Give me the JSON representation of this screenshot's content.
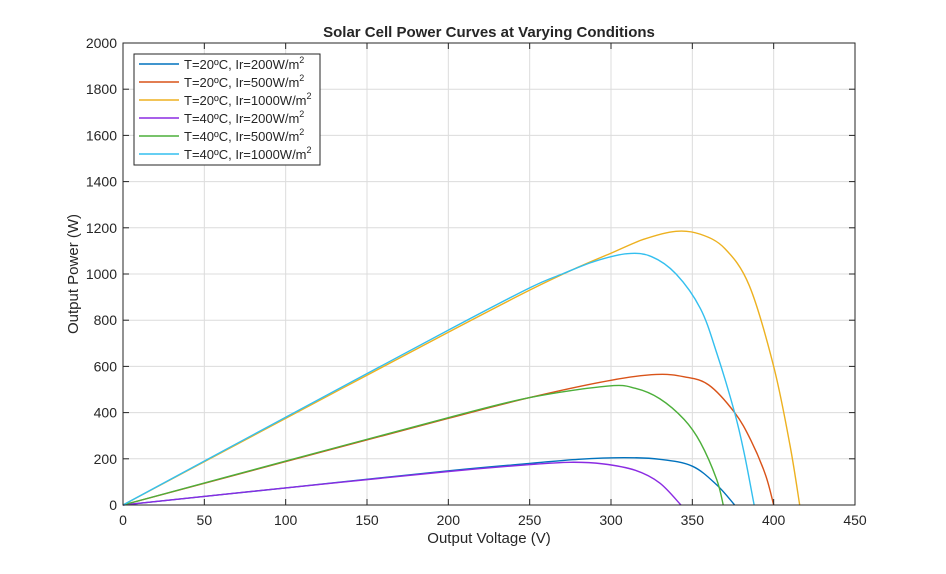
{
  "chart_data": {
    "type": "line",
    "title": "Solar Cell Power Curves at Varying Conditions",
    "xlabel": "Output Voltage (V)",
    "ylabel": "Output Power (W)",
    "xlim": [
      0,
      450
    ],
    "ylim": [
      0,
      2000
    ],
    "xticks": [
      0,
      50,
      100,
      150,
      200,
      250,
      300,
      350,
      400,
      450
    ],
    "yticks": [
      0,
      200,
      400,
      600,
      800,
      1000,
      1200,
      1400,
      1600,
      1800,
      2000
    ],
    "grid": true,
    "legend_placement": "top-left",
    "series": [
      {
        "name": "T=20ºC,  Ir=200W/m",
        "sup": "2",
        "color": "#0072BD",
        "x": [
          0,
          100,
          200,
          250,
          280,
          308,
          330,
          350,
          365,
          376
        ],
        "y": [
          0,
          74,
          148,
          180,
          198,
          205,
          198,
          168,
          87,
          0
        ]
      },
      {
        "name": "T=20ºC,  Ir=500W/m",
        "sup": "2",
        "color": "#D95319",
        "x": [
          0,
          100,
          200,
          250,
          300,
          328,
          345,
          360,
          376,
          386,
          395,
          400
        ],
        "y": [
          0,
          188,
          375,
          465,
          540,
          565,
          555,
          520,
          400,
          280,
          130,
          0
        ]
      },
      {
        "name": "T=20ºC,  Ir=1000W/m",
        "sup": "2",
        "color": "#EDB120",
        "x": [
          0,
          100,
          200,
          250,
          280,
          300,
          320,
          340,
          355,
          370,
          385,
          400,
          410,
          416
        ],
        "y": [
          0,
          375,
          748,
          930,
          1030,
          1090,
          1150,
          1185,
          1172,
          1110,
          950,
          600,
          260,
          0
        ]
      },
      {
        "name": "T=40ºC,  Ir=200W/m",
        "sup": "2",
        "color": "#8B2BE2",
        "x": [
          0,
          100,
          200,
          250,
          275,
          295,
          315,
          330,
          343
        ],
        "y": [
          0,
          74,
          145,
          175,
          185,
          178,
          150,
          95,
          0
        ]
      },
      {
        "name": "T=40ºC,  Ir=500W/m",
        "sup": "2",
        "color": "#4CAF3A",
        "x": [
          0,
          100,
          200,
          250,
          298,
          315,
          330,
          345,
          355,
          365,
          369
        ],
        "y": [
          0,
          190,
          378,
          465,
          515,
          505,
          460,
          370,
          270,
          110,
          0
        ]
      },
      {
        "name": "T=40ºC,  Ir=1000W/m",
        "sup": "2",
        "color": "#33BFEF",
        "x": [
          0,
          100,
          200,
          250,
          270,
          290,
          310,
          325,
          340,
          355,
          365,
          376,
          382,
          388
        ],
        "y": [
          0,
          380,
          757,
          940,
          1000,
          1055,
          1088,
          1075,
          1000,
          850,
          658,
          400,
          220,
          0
        ]
      }
    ]
  }
}
